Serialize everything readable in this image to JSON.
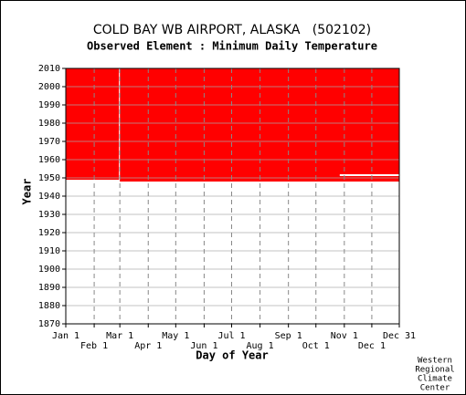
{
  "chart_data": {
    "type": "range",
    "title": "COLD BAY WB AIRPORT, ALASKA   (502102)",
    "subtitle": "Observed Element : Minimum Daily Temperature",
    "xlabel": "Day of Year",
    "ylabel": "Year",
    "xlim": [
      1,
      365
    ],
    "ylim": [
      1870,
      2010
    ],
    "xticks": [
      {
        "value": 1,
        "label": "Jan 1"
      },
      {
        "value": 32,
        "label": "Feb 1"
      },
      {
        "value": 60,
        "label": "Mar 1"
      },
      {
        "value": 91,
        "label": "Apr 1"
      },
      {
        "value": 121,
        "label": "May 1"
      },
      {
        "value": 152,
        "label": "Jun 1"
      },
      {
        "value": 182,
        "label": "Jul 1"
      },
      {
        "value": 213,
        "label": "Aug 1"
      },
      {
        "value": 244,
        "label": "Sep 1"
      },
      {
        "value": 274,
        "label": "Oct 1"
      },
      {
        "value": 305,
        "label": "Nov 1"
      },
      {
        "value": 335,
        "label": "Dec 1"
      },
      {
        "value": 365,
        "label": "Dec 31"
      }
    ],
    "yticks": [
      1870,
      1880,
      1890,
      1900,
      1910,
      1920,
      1930,
      1940,
      1950,
      1960,
      1970,
      1980,
      1990,
      2000,
      2010
    ],
    "color": "#ff0000",
    "grid": true,
    "periods": {
      "start_day": [
        1,
        60
      ],
      "end_day": [
        59,
        365
      ],
      "first_year": [
        1950,
        1949
      ],
      "last_year": [
        2010,
        2010
      ]
    },
    "gaps": {
      "start_day": [
        59,
        300
      ],
      "end_day": [
        59,
        365
      ],
      "first_year": [
        1950,
        1952
      ],
      "last_year": [
        2010,
        1952
      ]
    }
  },
  "credit": [
    "Western",
    "Regional",
    "Climate",
    "Center"
  ]
}
